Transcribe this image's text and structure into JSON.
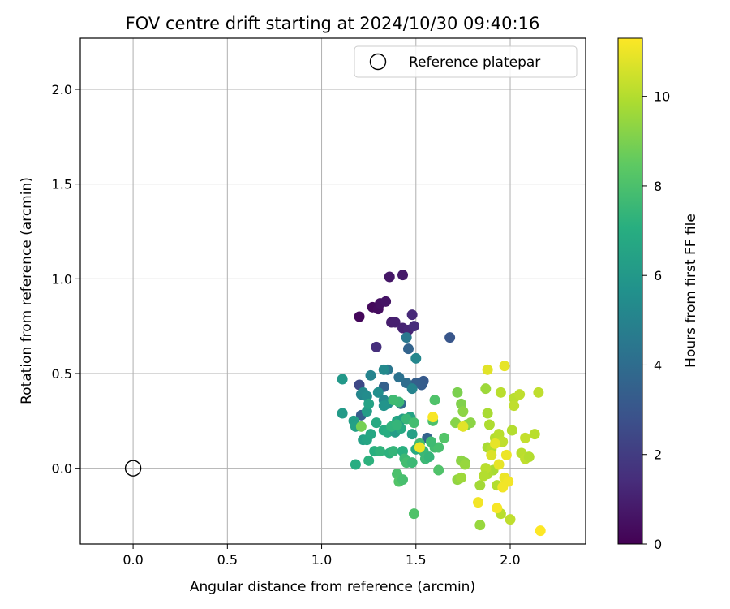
{
  "chart_data": {
    "type": "scatter",
    "title": "FOV centre drift starting at 2024/10/30 09:40:16",
    "xlabel": "Angular distance from reference (arcmin)",
    "ylabel": "Rotation from reference (arcmin)",
    "xlim": [
      -0.28,
      2.4
    ],
    "ylim": [
      -0.4,
      2.27
    ],
    "xticks": [
      0.0,
      0.5,
      1.0,
      1.5,
      2.0
    ],
    "yticks": [
      0.0,
      0.5,
      1.0,
      1.5,
      2.0
    ],
    "grid": true,
    "legend": {
      "position": "top-right",
      "entries": [
        "Reference platepar"
      ]
    },
    "reference_point": {
      "x": 0.0,
      "y": 0.0,
      "label": "Reference platepar"
    },
    "colorbar": {
      "label": "Hours from first FF file",
      "colormap": "viridis",
      "range": [
        0,
        11.3
      ],
      "ticks": [
        0,
        2,
        4,
        6,
        8,
        10
      ]
    },
    "points": [
      {
        "x": 1.2,
        "y": 0.8,
        "h": 0.2
      },
      {
        "x": 1.27,
        "y": 0.85,
        "h": 0.3
      },
      {
        "x": 1.3,
        "y": 0.84,
        "h": 0.4
      },
      {
        "x": 1.31,
        "y": 0.87,
        "h": 0.5
      },
      {
        "x": 1.34,
        "y": 0.88,
        "h": 0.6
      },
      {
        "x": 1.36,
        "y": 1.01,
        "h": 0.7
      },
      {
        "x": 1.43,
        "y": 1.02,
        "h": 0.8
      },
      {
        "x": 1.37,
        "y": 0.77,
        "h": 0.9
      },
      {
        "x": 1.39,
        "y": 0.77,
        "h": 1.0
      },
      {
        "x": 1.43,
        "y": 0.74,
        "h": 1.1
      },
      {
        "x": 1.46,
        "y": 0.73,
        "h": 1.2
      },
      {
        "x": 1.48,
        "y": 0.81,
        "h": 1.3
      },
      {
        "x": 1.49,
        "y": 0.75,
        "h": 1.4
      },
      {
        "x": 1.29,
        "y": 0.64,
        "h": 1.5
      },
      {
        "x": 1.2,
        "y": 0.44,
        "h": 2.5
      },
      {
        "x": 1.68,
        "y": 0.69,
        "h": 3.0
      },
      {
        "x": 1.54,
        "y": 0.46,
        "h": 3.2
      },
      {
        "x": 1.53,
        "y": 0.44,
        "h": 3.3
      },
      {
        "x": 1.5,
        "y": 0.45,
        "h": 3.4
      },
      {
        "x": 1.46,
        "y": 0.63,
        "h": 3.6
      },
      {
        "x": 1.45,
        "y": 0.69,
        "h": 4.5
      },
      {
        "x": 1.33,
        "y": 0.43,
        "h": 3.5
      },
      {
        "x": 1.21,
        "y": 0.28,
        "h": 3.3
      },
      {
        "x": 1.45,
        "y": 0.45,
        "h": 4.0
      },
      {
        "x": 1.41,
        "y": 0.48,
        "h": 4.2
      },
      {
        "x": 1.35,
        "y": 0.52,
        "h": 4.4
      },
      {
        "x": 1.42,
        "y": 0.34,
        "h": 3.8
      },
      {
        "x": 1.56,
        "y": 0.16,
        "h": 3.6
      },
      {
        "x": 1.5,
        "y": 0.58,
        "h": 5.2
      },
      {
        "x": 1.48,
        "y": 0.42,
        "h": 5.0
      },
      {
        "x": 1.33,
        "y": 0.52,
        "h": 5.3
      },
      {
        "x": 1.26,
        "y": 0.49,
        "h": 5.0
      },
      {
        "x": 1.21,
        "y": 0.39,
        "h": 5.1
      },
      {
        "x": 1.22,
        "y": 0.4,
        "h": 5.3
      },
      {
        "x": 1.24,
        "y": 0.38,
        "h": 5.4
      },
      {
        "x": 1.3,
        "y": 0.4,
        "h": 5.5
      },
      {
        "x": 1.33,
        "y": 0.36,
        "h": 5.2
      },
      {
        "x": 1.35,
        "y": 0.34,
        "h": 5.6
      },
      {
        "x": 1.33,
        "y": 0.33,
        "h": 5.8
      },
      {
        "x": 1.38,
        "y": 0.36,
        "h": 6.0
      },
      {
        "x": 1.11,
        "y": 0.47,
        "h": 6.0
      },
      {
        "x": 1.11,
        "y": 0.29,
        "h": 6.1
      },
      {
        "x": 1.17,
        "y": 0.25,
        "h": 6.3
      },
      {
        "x": 1.18,
        "y": 0.22,
        "h": 6.4
      },
      {
        "x": 1.24,
        "y": 0.3,
        "h": 6.2
      },
      {
        "x": 1.25,
        "y": 0.34,
        "h": 6.5
      },
      {
        "x": 1.22,
        "y": 0.15,
        "h": 6.4
      },
      {
        "x": 1.24,
        "y": 0.15,
        "h": 6.6
      },
      {
        "x": 1.26,
        "y": 0.18,
        "h": 6.7
      },
      {
        "x": 1.29,
        "y": 0.24,
        "h": 6.8
      },
      {
        "x": 1.33,
        "y": 0.2,
        "h": 6.9
      },
      {
        "x": 1.35,
        "y": 0.19,
        "h": 7.0
      },
      {
        "x": 1.39,
        "y": 0.19,
        "h": 6.2
      },
      {
        "x": 1.4,
        "y": 0.25,
        "h": 6.6
      },
      {
        "x": 1.42,
        "y": 0.21,
        "h": 6.8
      },
      {
        "x": 1.43,
        "y": 0.26,
        "h": 6.3
      },
      {
        "x": 1.47,
        "y": 0.27,
        "h": 6.5
      },
      {
        "x": 1.48,
        "y": 0.18,
        "h": 6.4
      },
      {
        "x": 1.5,
        "y": 0.1,
        "h": 6.9
      },
      {
        "x": 1.18,
        "y": 0.02,
        "h": 7.0
      },
      {
        "x": 1.25,
        "y": 0.04,
        "h": 7.2
      },
      {
        "x": 1.28,
        "y": 0.09,
        "h": 7.1
      },
      {
        "x": 1.31,
        "y": 0.09,
        "h": 7.3
      },
      {
        "x": 1.36,
        "y": 0.08,
        "h": 7.2
      },
      {
        "x": 1.38,
        "y": 0.09,
        "h": 7.4
      },
      {
        "x": 1.43,
        "y": 0.09,
        "h": 7.1
      },
      {
        "x": 1.44,
        "y": 0.05,
        "h": 7.6
      },
      {
        "x": 1.45,
        "y": 0.03,
        "h": 7.8
      },
      {
        "x": 1.37,
        "y": 0.22,
        "h": 7.3
      },
      {
        "x": 1.4,
        "y": 0.23,
        "h": 7.4
      },
      {
        "x": 1.41,
        "y": 0.35,
        "h": 7.6
      },
      {
        "x": 1.38,
        "y": 0.36,
        "h": 7.7
      },
      {
        "x": 1.45,
        "y": 0.26,
        "h": 7.5
      },
      {
        "x": 1.49,
        "y": 0.24,
        "h": 7.8
      },
      {
        "x": 1.48,
        "y": 0.03,
        "h": 7.6
      },
      {
        "x": 1.52,
        "y": 0.13,
        "h": 7.7
      },
      {
        "x": 1.54,
        "y": 0.09,
        "h": 7.5
      },
      {
        "x": 1.55,
        "y": 0.05,
        "h": 7.6
      },
      {
        "x": 1.57,
        "y": 0.06,
        "h": 7.4
      },
      {
        "x": 1.6,
        "y": 0.11,
        "h": 7.8
      },
      {
        "x": 1.62,
        "y": 0.11,
        "h": 7.9
      },
      {
        "x": 1.58,
        "y": 0.14,
        "h": 7.7
      },
      {
        "x": 1.59,
        "y": 0.25,
        "h": 8.0
      },
      {
        "x": 1.6,
        "y": 0.36,
        "h": 8.1
      },
      {
        "x": 1.65,
        "y": 0.16,
        "h": 8.2
      },
      {
        "x": 1.62,
        "y": -0.01,
        "h": 8.1
      },
      {
        "x": 1.4,
        "y": -0.03,
        "h": 8.0
      },
      {
        "x": 1.41,
        "y": -0.07,
        "h": 8.2
      },
      {
        "x": 1.43,
        "y": -0.06,
        "h": 7.9
      },
      {
        "x": 1.49,
        "y": -0.24,
        "h": 8.1
      },
      {
        "x": 1.21,
        "y": 0.22,
        "h": 8.9
      },
      {
        "x": 1.72,
        "y": 0.4,
        "h": 9.0
      },
      {
        "x": 1.71,
        "y": 0.24,
        "h": 9.2
      },
      {
        "x": 1.74,
        "y": 0.34,
        "h": 9.1
      },
      {
        "x": 1.75,
        "y": 0.3,
        "h": 9.3
      },
      {
        "x": 1.77,
        "y": 0.23,
        "h": 9.0
      },
      {
        "x": 1.76,
        "y": 0.03,
        "h": 9.2
      },
      {
        "x": 1.72,
        "y": -0.06,
        "h": 9.4
      },
      {
        "x": 1.74,
        "y": 0.04,
        "h": 9.3
      },
      {
        "x": 1.76,
        "y": 0.02,
        "h": 9.5
      },
      {
        "x": 1.79,
        "y": 0.24,
        "h": 9.3
      },
      {
        "x": 1.74,
        "y": -0.05,
        "h": 9.6
      },
      {
        "x": 1.84,
        "y": -0.3,
        "h": 9.5
      },
      {
        "x": 1.84,
        "y": -0.09,
        "h": 9.7
      },
      {
        "x": 1.87,
        "y": 0.42,
        "h": 9.6
      },
      {
        "x": 1.88,
        "y": 0.29,
        "h": 9.8
      },
      {
        "x": 1.89,
        "y": 0.23,
        "h": 9.9
      },
      {
        "x": 1.88,
        "y": 0.11,
        "h": 9.8
      },
      {
        "x": 1.9,
        "y": 0.1,
        "h": 10.0
      },
      {
        "x": 1.91,
        "y": -0.01,
        "h": 9.8
      },
      {
        "x": 1.88,
        "y": -0.03,
        "h": 9.9
      },
      {
        "x": 1.92,
        "y": 0.16,
        "h": 10.0
      },
      {
        "x": 1.94,
        "y": 0.18,
        "h": 10.1
      },
      {
        "x": 1.95,
        "y": 0.4,
        "h": 10.1
      },
      {
        "x": 1.96,
        "y": 0.14,
        "h": 10.2
      },
      {
        "x": 1.93,
        "y": -0.09,
        "h": 10.0
      },
      {
        "x": 1.95,
        "y": -0.24,
        "h": 10.1
      },
      {
        "x": 2.0,
        "y": -0.27,
        "h": 10.2
      },
      {
        "x": 2.02,
        "y": 0.37,
        "h": 10.1
      },
      {
        "x": 2.02,
        "y": 0.33,
        "h": 10.2
      },
      {
        "x": 2.01,
        "y": 0.2,
        "h": 10.0
      },
      {
        "x": 2.05,
        "y": 0.39,
        "h": 10.2
      },
      {
        "x": 2.08,
        "y": 0.16,
        "h": 10.3
      },
      {
        "x": 2.06,
        "y": 0.08,
        "h": 10.1
      },
      {
        "x": 2.08,
        "y": 0.05,
        "h": 10.2
      },
      {
        "x": 2.1,
        "y": 0.06,
        "h": 10.0
      },
      {
        "x": 2.13,
        "y": 0.18,
        "h": 10.1
      },
      {
        "x": 2.15,
        "y": 0.4,
        "h": 10.2
      },
      {
        "x": 1.87,
        "y": 0.0,
        "h": 10.1
      },
      {
        "x": 1.86,
        "y": -0.04,
        "h": 10.0
      },
      {
        "x": 1.88,
        "y": 0.52,
        "h": 10.8
      },
      {
        "x": 1.97,
        "y": 0.54,
        "h": 10.9
      },
      {
        "x": 1.9,
        "y": 0.07,
        "h": 10.7
      },
      {
        "x": 1.94,
        "y": 0.02,
        "h": 10.9
      },
      {
        "x": 1.97,
        "y": -0.05,
        "h": 11.0
      },
      {
        "x": 1.99,
        "y": -0.07,
        "h": 11.1
      },
      {
        "x": 1.98,
        "y": 0.07,
        "h": 11.0
      },
      {
        "x": 1.93,
        "y": -0.21,
        "h": 11.2
      },
      {
        "x": 1.83,
        "y": -0.18,
        "h": 11.1
      },
      {
        "x": 2.16,
        "y": -0.33,
        "h": 11.3
      },
      {
        "x": 1.59,
        "y": 0.27,
        "h": 11.2
      },
      {
        "x": 1.52,
        "y": 0.11,
        "h": 11.0
      },
      {
        "x": 1.75,
        "y": 0.22,
        "h": 10.8
      },
      {
        "x": 1.96,
        "y": -0.1,
        "h": 11.1
      },
      {
        "x": 1.92,
        "y": 0.13,
        "h": 10.9
      }
    ]
  }
}
